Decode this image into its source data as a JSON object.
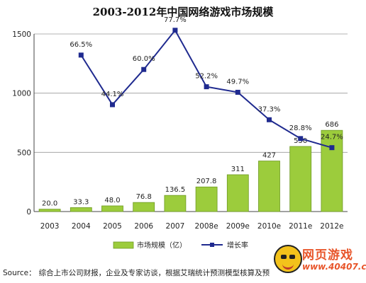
{
  "chart_data": {
    "type": "bar",
    "title": "2003-2012年中国网络游戏市场规模",
    "categories": [
      "2003",
      "2004",
      "2005",
      "2006",
      "2007",
      "2008e",
      "2009e",
      "2010e",
      "2011e",
      "2012e"
    ],
    "series": [
      {
        "name": "市场规模（亿）",
        "type": "bar",
        "values": [
          20.0,
          33.3,
          48.0,
          76.8,
          136.5,
          207.8,
          311,
          427,
          550,
          686
        ],
        "labels": [
          "20.0",
          "33.3",
          "48.0",
          "76.8",
          "136.5",
          "207.8",
          "311",
          "427",
          "550",
          "686"
        ]
      },
      {
        "name": "增长率",
        "type": "line",
        "values": [
          null,
          66.5,
          44.1,
          60.0,
          77.7,
          52.2,
          49.7,
          37.3,
          28.8,
          24.7
        ],
        "labels": [
          "",
          "66.5%",
          "44.1%",
          "60.0%",
          "77.7%",
          "52.2%",
          "49.7%",
          "37.3%",
          "28.8%",
          "24.7%"
        ]
      }
    ],
    "y_ticks": [
      "0",
      "500",
      "1000",
      "1500"
    ],
    "ylim": [
      0,
      1500
    ],
    "grid": true,
    "legend_placement": "bottom-center",
    "colors": {
      "bar": "#9ccc3c",
      "bar_edge": "#6e9a22",
      "line": "#1f2a8f"
    }
  },
  "source": {
    "label": "Source：",
    "text": "综合上市公司财报，企业及专家访谈，根据艾瑞统计预测模型核算及预"
  },
  "watermark": {
    "title": "网页游戏",
    "url": "www.40407.com"
  }
}
